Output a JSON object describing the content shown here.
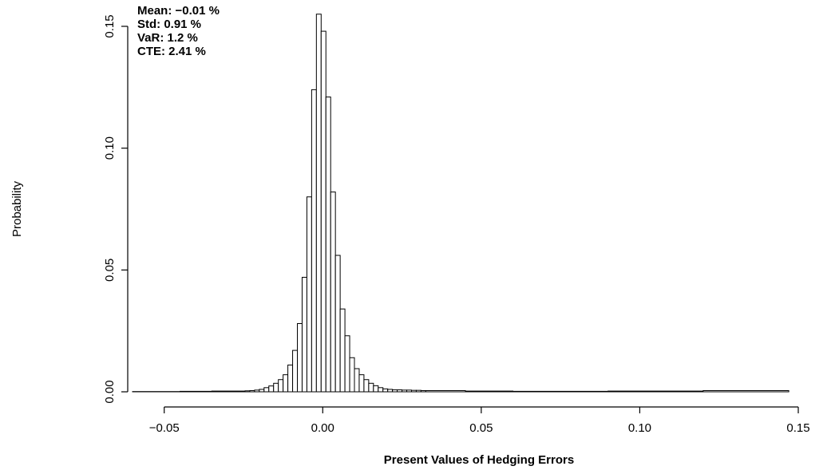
{
  "chart_data": {
    "type": "histogram",
    "x_label": "Present Values of Hedging Errors",
    "y_label": "Probability",
    "annotations": [
      "Mean:  −0.01 %",
      "Std:  0.91 %",
      "VaR:  1.2 %",
      "CTE:  2.41 %"
    ],
    "bins": [
      -0.06,
      -0.045,
      -0.035,
      -0.0245,
      -0.023,
      -0.0215,
      -0.02,
      -0.0185,
      -0.017,
      -0.0155,
      -0.014,
      -0.0125,
      -0.011,
      -0.0095,
      -0.008,
      -0.0065,
      -0.005,
      -0.0035,
      -0.002,
      -0.0005,
      0.001,
      0.0025,
      0.004,
      0.0055,
      0.007,
      0.0085,
      0.01,
      0.0115,
      0.013,
      0.0145,
      0.016,
      0.0175,
      0.019,
      0.0205,
      0.022,
      0.0235,
      0.025,
      0.0265,
      0.028,
      0.0295,
      0.031,
      0.0325,
      0.045,
      0.06,
      0.09,
      0.12,
      0.147
    ],
    "values": [
      0.0001,
      0.0002,
      0.0003,
      0.0004,
      0.0005,
      0.0007,
      0.001,
      0.0017,
      0.0024,
      0.0035,
      0.005,
      0.007,
      0.011,
      0.017,
      0.028,
      0.047,
      0.08,
      0.124,
      0.155,
      0.148,
      0.121,
      0.082,
      0.056,
      0.034,
      0.023,
      0.014,
      0.0095,
      0.007,
      0.005,
      0.0035,
      0.0025,
      0.0017,
      0.0012,
      0.001,
      0.0008,
      0.0008,
      0.0007,
      0.0007,
      0.0006,
      0.0006,
      0.0005,
      0.0005,
      0.0003,
      0.0002,
      0.0003,
      0.0005
    ],
    "color": "#ffffff",
    "edge_color": "#000000",
    "xlim": [
      -0.06,
      0.15
    ],
    "ylim": [
      0,
      0.15
    ],
    "xticks": [
      {
        "value": -0.05,
        "label": "−0.05"
      },
      {
        "value": 0,
        "label": "0.00"
      },
      {
        "value": 0.05,
        "label": "0.05"
      },
      {
        "value": 0.1,
        "label": "0.10"
      },
      {
        "value": 0.15,
        "label": "0.15"
      }
    ],
    "yticks": [
      {
        "value": 0,
        "label": "0.00"
      },
      {
        "value": 0.05,
        "label": "0.05"
      },
      {
        "value": 0.1,
        "label": "0.10"
      },
      {
        "value": 0.15,
        "label": "0.15"
      }
    ]
  }
}
